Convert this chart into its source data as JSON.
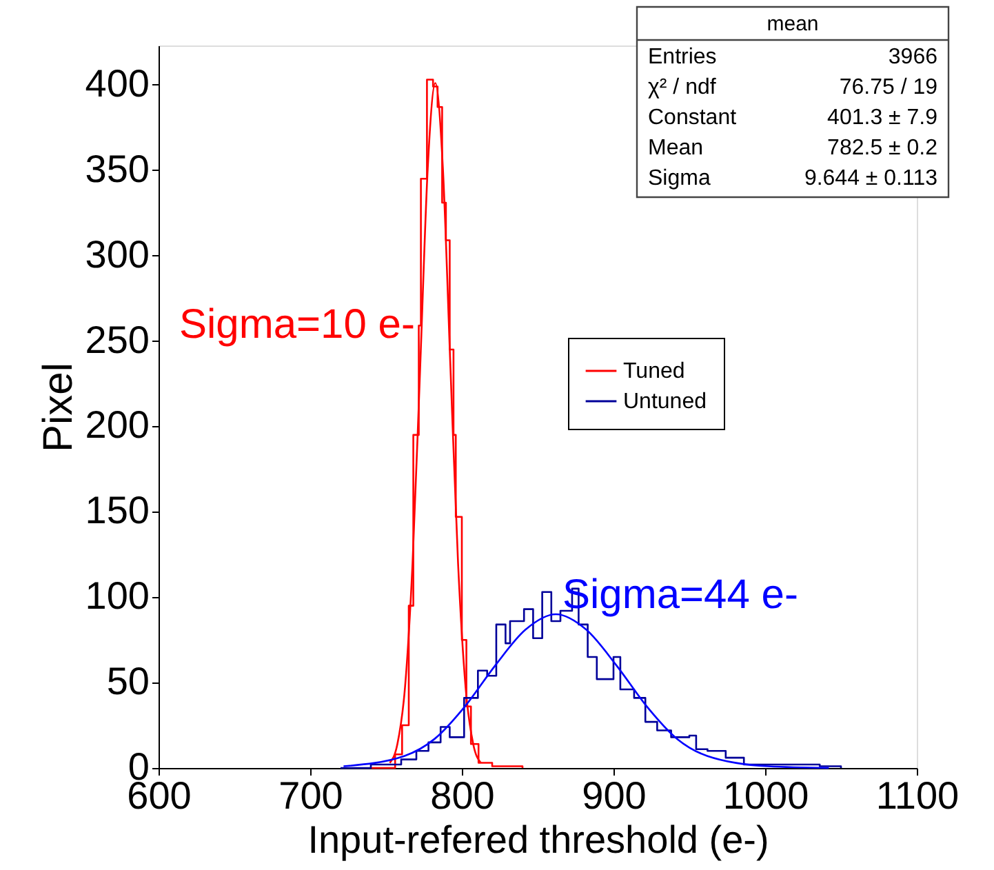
{
  "chart_data": {
    "type": "step",
    "xlabel": "Input-refered threshold (e-)",
    "ylabel": "Pixel",
    "xlim": [
      600,
      1100
    ],
    "ylim": [
      0,
      423
    ],
    "xticks": [
      600,
      700,
      800,
      900,
      1000,
      1100
    ],
    "yticks": [
      0,
      50,
      100,
      150,
      200,
      250,
      300,
      350,
      400
    ],
    "grid": false,
    "legend": "right",
    "series": [
      {
        "name": "Tuned",
        "color": "#ff0000",
        "x": [
          740,
          756,
          760.6,
          765,
          768,
          771.6,
          773,
          777,
          781,
          784,
          787,
          789.5,
          792,
          794.5,
          796,
          800,
          803,
          806,
          811,
          820,
          840
        ],
        "values": [
          0,
          8,
          25,
          95,
          195,
          259,
          345,
          403,
          399,
          387,
          331,
          309,
          245,
          195,
          147,
          75,
          36,
          14,
          3,
          1,
          0
        ]
      },
      {
        "type": "line",
        "color": "#ff0000",
        "x": [
          752.5,
          757.5,
          762.5,
          767.5,
          772.5,
          777.5,
          782.5,
          787.5,
          792.5,
          797.5,
          802.5,
          807.5,
          812.5
        ],
        "values": [
          3,
          14,
          47,
          120,
          234,
          351,
          401,
          351,
          234,
          120,
          47,
          14,
          3
        ]
      },
      {
        "name": "Untuned",
        "color": "#000099",
        "x": [
          720,
          740,
          760,
          770,
          778,
          786,
          792,
          801.5,
          810.6,
          816.7,
          822.7,
          828.8,
          831.8,
          841,
          847,
          853,
          859,
          865,
          872.7,
          877,
          883,
          889,
          900,
          904.5,
          913.6,
          921,
          928.8,
          938,
          950,
          954.5,
          962,
          974,
          986,
          1004.5,
          1036,
          1050
        ],
        "values": [
          0,
          2,
          5,
          10,
          15,
          24,
          18,
          41,
          57,
          54,
          84,
          73,
          86,
          93,
          76,
          103,
          86,
          92,
          105,
          84,
          65,
          52,
          65,
          46,
          41,
          27,
          22,
          18,
          19,
          11,
          10,
          6,
          2,
          2,
          1,
          0
        ]
      },
      {
        "type": "line",
        "color": "#0000ff",
        "x": [
          722,
          762,
          782,
          802,
          822,
          842,
          862,
          882,
          902,
          922,
          942,
          962,
          1002,
          1042
        ],
        "values": [
          1,
          7,
          17,
          36,
          60,
          81,
          90,
          81,
          60,
          36,
          17,
          7,
          1,
          0
        ]
      }
    ],
    "annotations": [
      "Sigma=10 e-",
      "Sigma=44 e-",
      "mean",
      "Entries",
      "3966",
      "χ² / ndf",
      "76.75 / 19",
      "Constant",
      "401.3 ± 7.9",
      "Mean",
      "782.5 ± 0.2",
      "Sigma",
      "9.644 ± 0.113"
    ]
  }
}
